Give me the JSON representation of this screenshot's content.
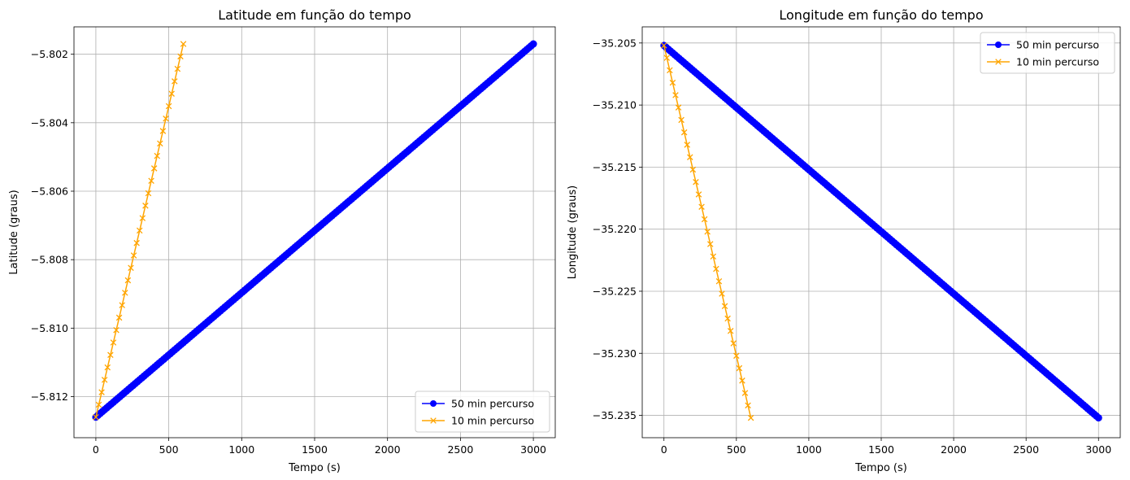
{
  "chart_data": [
    {
      "type": "line",
      "title": "Latitude em função do tempo",
      "xlabel": "Tempo (s)",
      "ylabel": "Latitude (graus)",
      "xlim": [
        -150,
        3150
      ],
      "ylim": [
        -5.8132,
        -5.8012
      ],
      "xticks": [
        0,
        500,
        1000,
        1500,
        2000,
        2500,
        3000
      ],
      "xtick_labels": [
        "0",
        "500",
        "1000",
        "1500",
        "2000",
        "2500",
        "3000"
      ],
      "yticks": [
        -5.812,
        -5.81,
        -5.808,
        -5.806,
        -5.804,
        -5.802
      ],
      "ytick_labels": [
        "−5.812",
        "−5.810",
        "−5.808",
        "−5.806",
        "−5.804",
        "−5.802"
      ],
      "grid": true,
      "legend": "lower right",
      "series": [
        {
          "name": "50 min percurso",
          "color": "#0000ff",
          "marker": "circle",
          "x_start": 0,
          "x_end": 3000,
          "x_step": 15,
          "y_start": -5.8126,
          "y_end": -5.8017
        },
        {
          "name": "10 min percurso",
          "color": "#ffa500",
          "marker": "x",
          "x_start": 0,
          "x_end": 600,
          "x_step": 20,
          "y_start": -5.8126,
          "y_end": -5.8017
        }
      ]
    },
    {
      "type": "line",
      "title": "Longitude em função do tempo",
      "xlabel": "Tempo (s)",
      "ylabel": "Longitude (graus)",
      "xlim": [
        -150,
        3150
      ],
      "ylim": [
        -35.2368,
        -35.2037
      ],
      "xticks": [
        0,
        500,
        1000,
        1500,
        2000,
        2500,
        3000
      ],
      "xtick_labels": [
        "0",
        "500",
        "1000",
        "1500",
        "2000",
        "2500",
        "3000"
      ],
      "yticks": [
        -35.235,
        -35.23,
        -35.225,
        -35.22,
        -35.215,
        -35.21,
        -35.205
      ],
      "ytick_labels": [
        "−35.235",
        "−35.230",
        "−35.225",
        "−35.220",
        "−35.215",
        "−35.210",
        "−35.205"
      ],
      "grid": true,
      "legend": "upper right",
      "series": [
        {
          "name": "50 min percurso",
          "color": "#0000ff",
          "marker": "circle",
          "x_start": 0,
          "x_end": 3000,
          "x_step": 15,
          "y_start": -35.2052,
          "y_end": -35.2352
        },
        {
          "name": "10 min percurso",
          "color": "#ffa500",
          "marker": "x",
          "x_start": 0,
          "x_end": 600,
          "x_step": 20,
          "y_start": -35.2052,
          "y_end": -35.2352
        }
      ]
    }
  ]
}
